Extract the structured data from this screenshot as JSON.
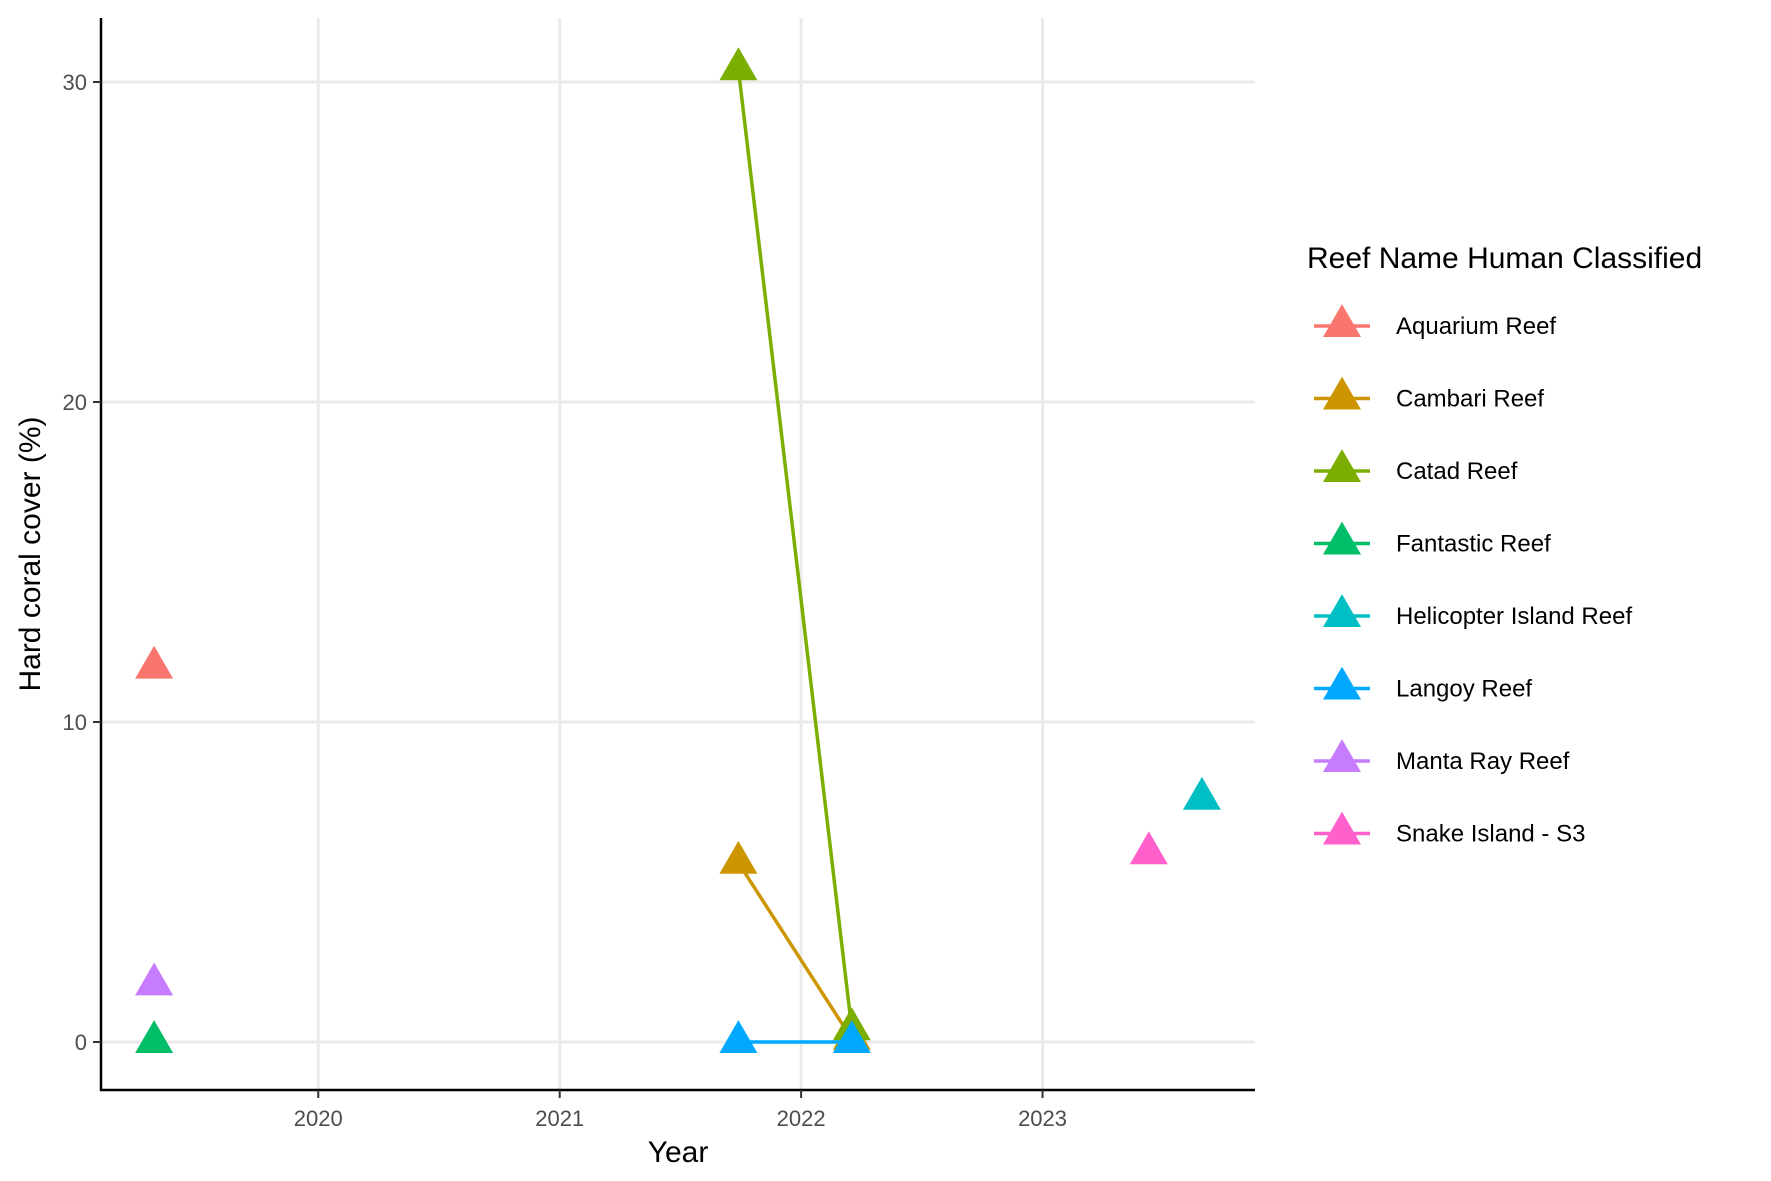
{
  "chart_data": {
    "type": "line",
    "title": "",
    "xlabel": "Year",
    "ylabel": "Hard coral cover (%)",
    "xlim": [
      2019.1,
      2023.88
    ],
    "ylim": [
      -1.5,
      32
    ],
    "x_ticks": [
      2020,
      2021,
      2022,
      2023
    ],
    "y_ticks": [
      0,
      10,
      20,
      30
    ],
    "grid": true,
    "legend": {
      "title": "Reef Name Human Classified",
      "position": "right"
    },
    "series": [
      {
        "name": "Aquarium Reef",
        "color": "#F8766D",
        "points": [
          {
            "x": 2019.32,
            "y": 11.7
          }
        ]
      },
      {
        "name": "Cambari Reef",
        "color": "#CD9600",
        "points": [
          {
            "x": 2021.74,
            "y": 5.6
          },
          {
            "x": 2022.21,
            "y": 0.1
          }
        ]
      },
      {
        "name": "Catad Reef",
        "color": "#7CAE00",
        "points": [
          {
            "x": 2021.74,
            "y": 30.4
          },
          {
            "x": 2022.21,
            "y": 0.4
          }
        ]
      },
      {
        "name": "Fantastic Reef",
        "color": "#00BE67",
        "points": [
          {
            "x": 2019.32,
            "y": 0.0
          }
        ]
      },
      {
        "name": "Helicopter Island Reef",
        "color": "#00BFC4",
        "points": [
          {
            "x": 2023.66,
            "y": 7.6
          }
        ]
      },
      {
        "name": "Langoy Reef",
        "color": "#00A9FF",
        "points": [
          {
            "x": 2021.74,
            "y": 0.0
          },
          {
            "x": 2022.21,
            "y": 0.0
          }
        ]
      },
      {
        "name": "Manta Ray Reef",
        "color": "#C77CFF",
        "points": [
          {
            "x": 2019.32,
            "y": 1.8
          }
        ]
      },
      {
        "name": "Snake Island - S3",
        "color": "#FF61CC",
        "points": [
          {
            "x": 2023.44,
            "y": 5.9
          }
        ]
      }
    ]
  }
}
